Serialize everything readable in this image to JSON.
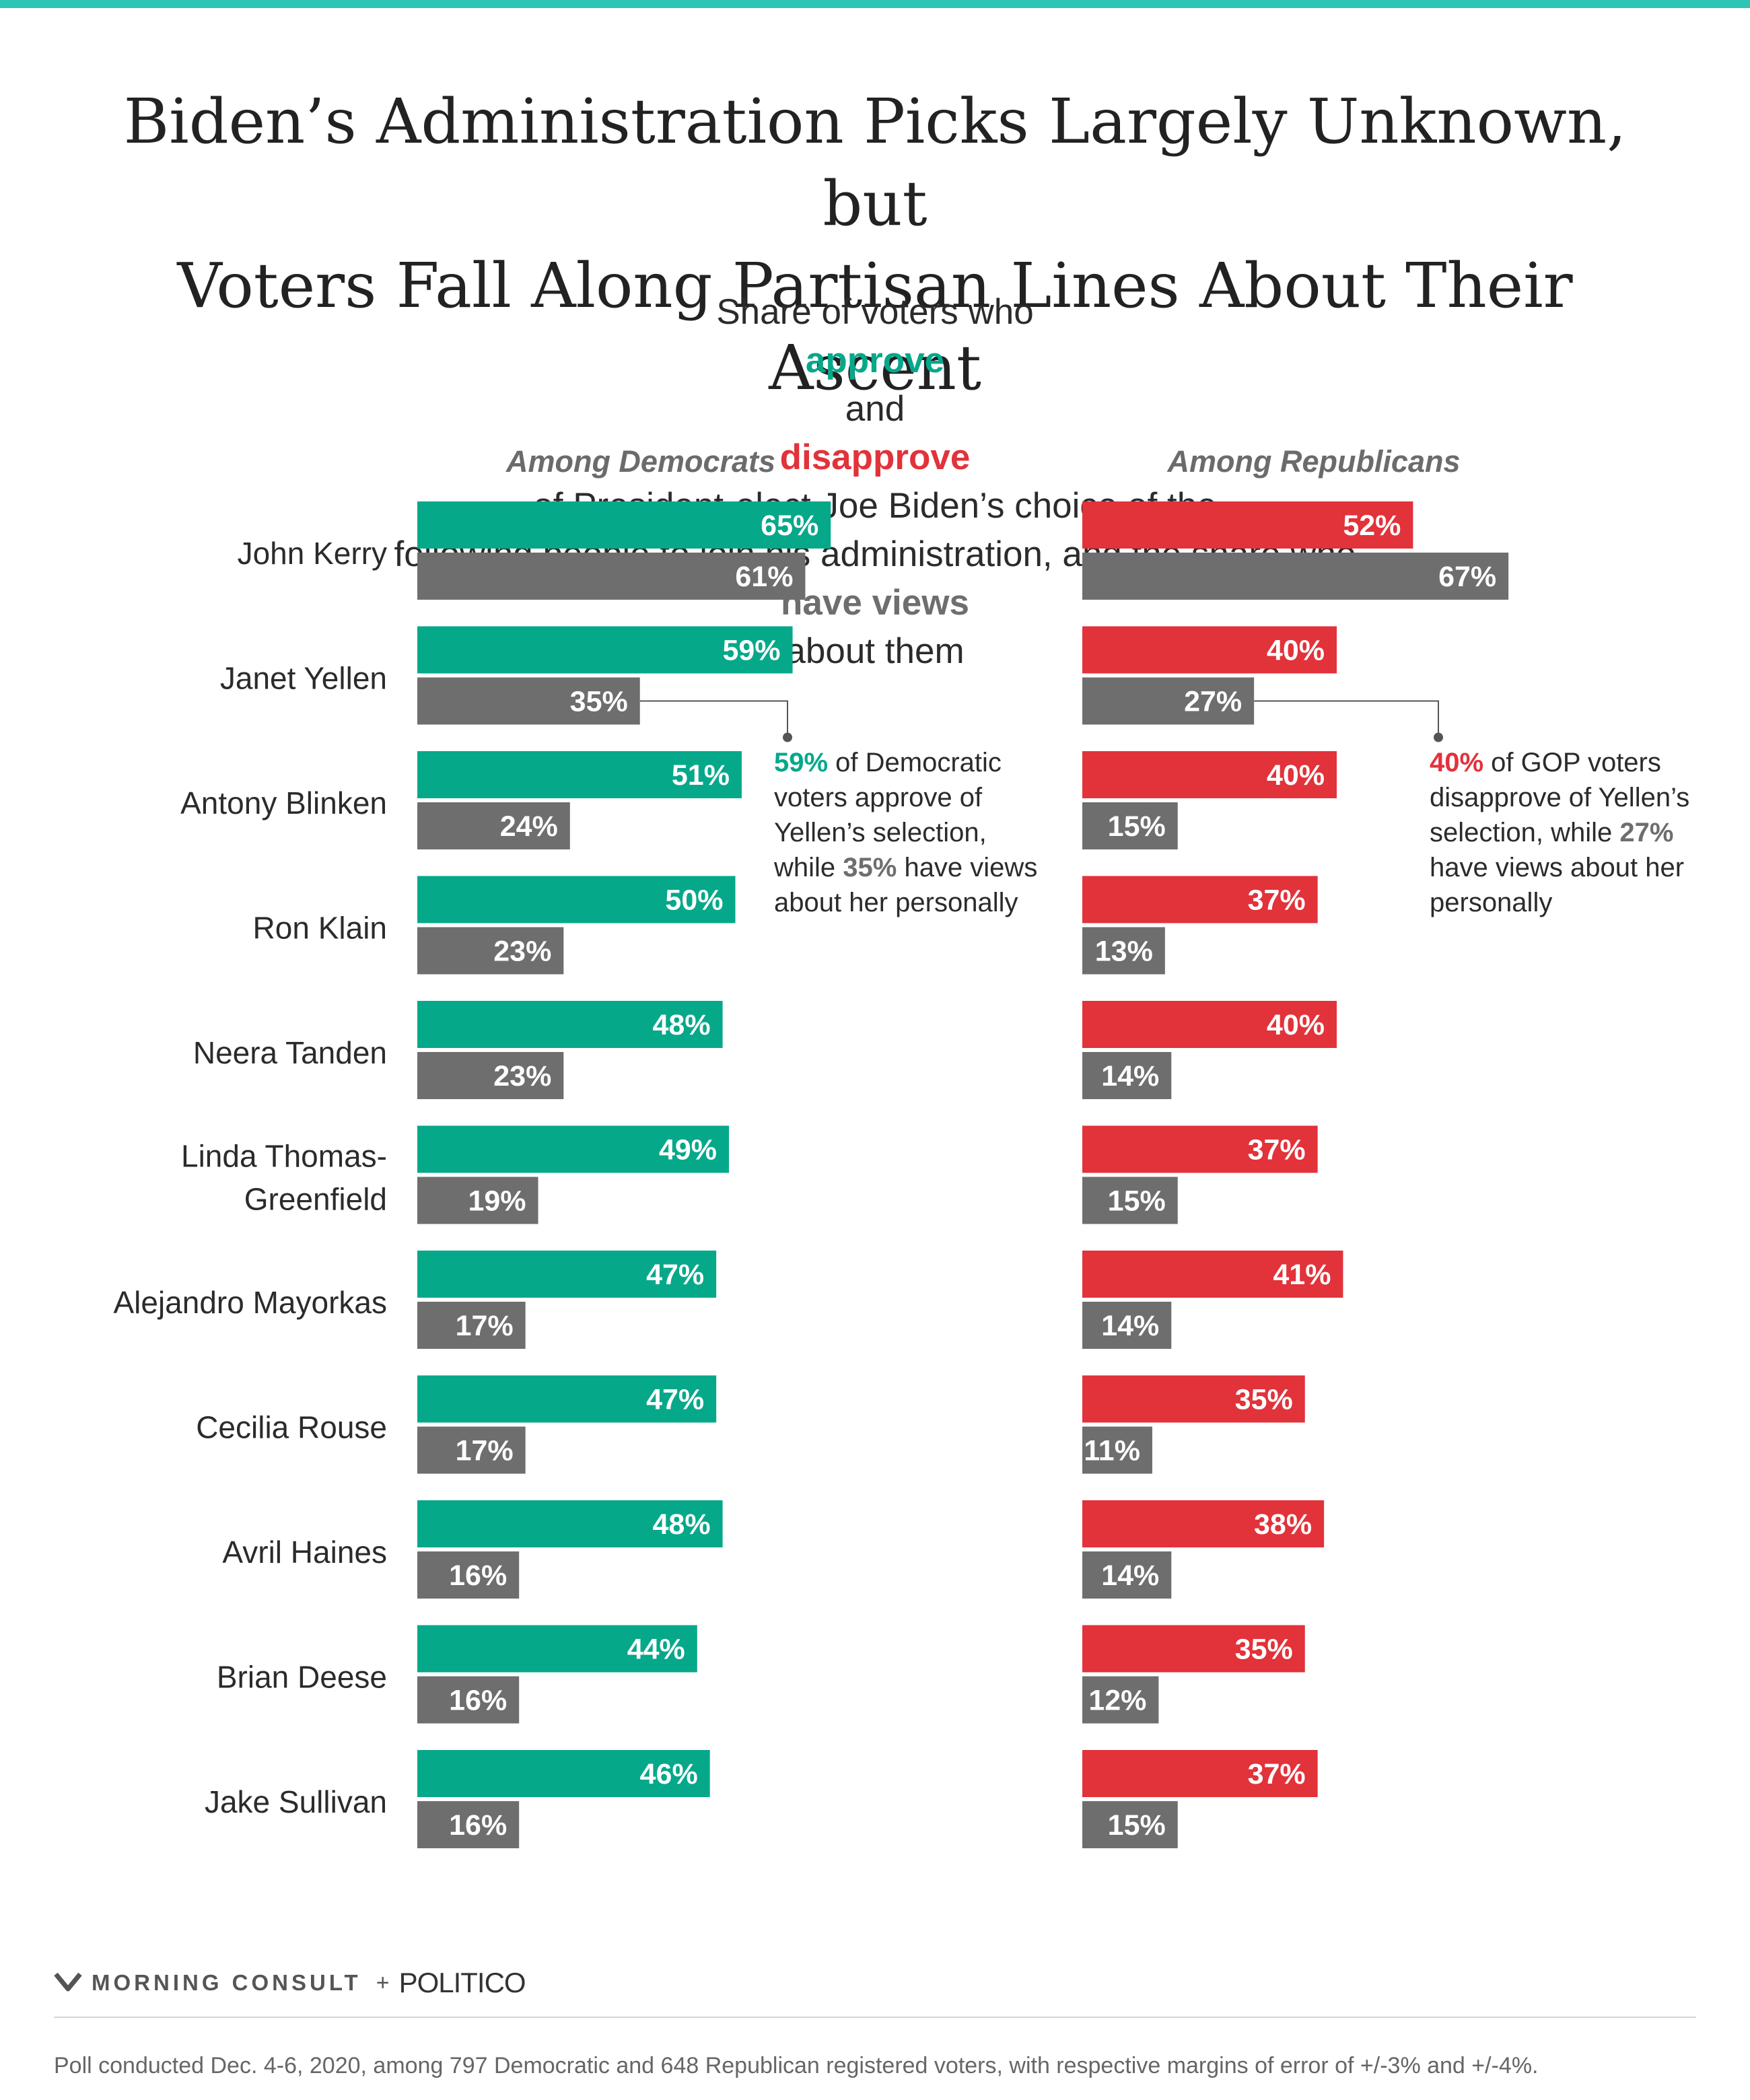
{
  "header": {
    "title_line1": "Biden’s Administration Picks Largely Unknown, but",
    "title_line2": "Voters Fall Along Partisan Lines About Their Ascent",
    "subtitle_part1": "Share of voters who ",
    "subtitle_approve": "approve",
    "subtitle_and": " and ",
    "subtitle_disapprove": "disapprove",
    "subtitle_part2": " of President-elect Joe Biden’s choice of the",
    "subtitle_line2_part1": "following people to join his administration, and the share who ",
    "subtitle_views": "have views",
    "subtitle_line2_part2": " about them"
  },
  "colors": {
    "approve": "#06a88a",
    "disapprove": "#e2323a",
    "views": "#6e6e6e",
    "accent_bar": "#2ec4b6"
  },
  "chart_data": {
    "type": "bar",
    "orientation": "horizontal",
    "categories": [
      "John Kerry",
      "Janet Yellen",
      "Antony Blinken",
      "Ron Klain",
      "Neera Tanden",
      "Linda Thomas-Greenfield",
      "Alejandro Mayorkas",
      "Cecilia Rouse",
      "Avril Haines",
      "Brian Deese",
      "Jake Sullivan"
    ],
    "category_display": [
      [
        "John Kerry"
      ],
      [
        "Janet Yellen"
      ],
      [
        "Antony Blinken"
      ],
      [
        "Ron Klain"
      ],
      [
        "Neera Tanden"
      ],
      [
        "Linda Thomas-",
        "Greenfield"
      ],
      [
        "Alejandro Mayorkas"
      ],
      [
        "Cecilia Rouse"
      ],
      [
        "Avril Haines"
      ],
      [
        "Brian Deese"
      ],
      [
        "Jake Sullivan"
      ]
    ],
    "panels": [
      {
        "title": "Among Democrats",
        "series": [
          {
            "name": "approve",
            "color": "#06a88a",
            "values": [
              65,
              59,
              51,
              50,
              48,
              49,
              47,
              47,
              48,
              44,
              46
            ]
          },
          {
            "name": "have views",
            "color": "#6e6e6e",
            "values": [
              61,
              35,
              24,
              23,
              23,
              19,
              17,
              17,
              16,
              16,
              16
            ]
          }
        ]
      },
      {
        "title": "Among Republicans",
        "series": [
          {
            "name": "disapprove",
            "color": "#e2323a",
            "values": [
              52,
              40,
              40,
              37,
              40,
              37,
              41,
              35,
              38,
              35,
              37
            ]
          },
          {
            "name": "have views",
            "color": "#6e6e6e",
            "values": [
              67,
              27,
              15,
              13,
              14,
              15,
              14,
              11,
              14,
              12,
              15
            ]
          }
        ]
      }
    ],
    "value_suffix": "%",
    "xlim": [
      0,
      100
    ],
    "grid": false,
    "legend": "none"
  },
  "annotations": {
    "dem": {
      "val1": "59%",
      "line1_rest": " of Democratic",
      "line2": "voters approve of",
      "line3": "Yellen’s selection,",
      "line4_pre": "while ",
      "val2": "35%",
      "line4_post": " have views",
      "line5": "about her personally"
    },
    "gop": {
      "val1": "40%",
      "line1_rest": " of GOP voters",
      "line2": "disapprove of Yellen’s",
      "line3_pre": "selection, while ",
      "val2": "27%",
      "line4": "have views about her",
      "line5": "personally"
    }
  },
  "footer": {
    "brand1": "MORNING CONSULT",
    "plus": "+",
    "brand2": "POLITICO",
    "note": "Poll conducted Dec. 4-6, 2020, among 797 Democratic and 648 Republican registered voters, with respective margins of error of +/-3% and +/-4%."
  }
}
